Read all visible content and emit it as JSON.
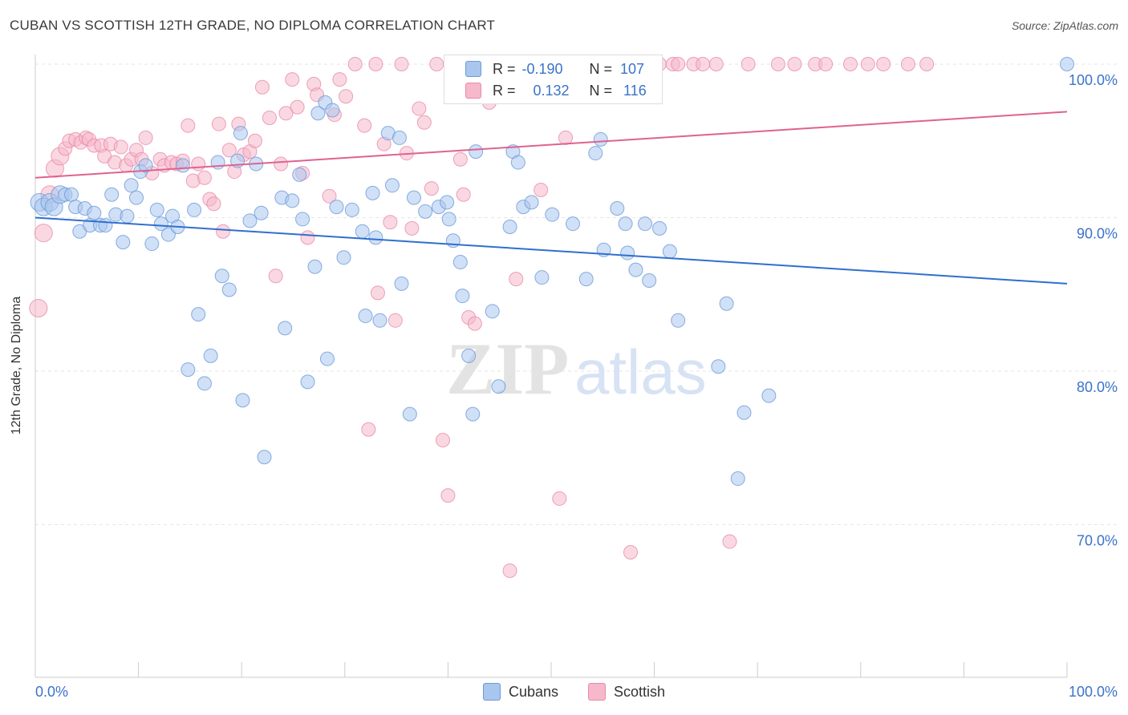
{
  "title": "CUBAN VS SCOTTISH 12TH GRADE, NO DIPLOMA CORRELATION CHART",
  "source": "Source: ZipAtlas.com",
  "watermark": {
    "zip": "ZIP",
    "atlas": "atlas"
  },
  "colors": {
    "cubans_fill": "#a9c6ef",
    "cubans_stroke": "#6b9ad8",
    "cubans_line": "#2f6fd0",
    "scottish_fill": "#f6b8cb",
    "scottish_stroke": "#e98aaa",
    "scottish_line": "#e0628f",
    "axis_text": "#3b73c9",
    "grid": "#e6e6e6"
  },
  "legend": {
    "r_label": "R =",
    "n_label": "N =",
    "cubans": {
      "r": "-0.190",
      "n": "107"
    },
    "scottish": {
      "r": "0.132",
      "n": "116"
    }
  },
  "bottom_legend": {
    "cubans": "Cubans",
    "scottish": "Scottish"
  },
  "chart_data": {
    "type": "scatter",
    "title": "CUBAN VS SCOTTISH 12TH GRADE, NO DIPLOMA CORRELATION CHART",
    "xlabel": "",
    "ylabel": "12th Grade, No Diploma",
    "xlim": [
      0,
      100
    ],
    "ylim": [
      60,
      101.5
    ],
    "x_tick_labels": [
      "0.0%",
      "100.0%"
    ],
    "y_ticks": [
      70,
      80,
      90,
      100
    ],
    "y_tick_labels": [
      "70.0%",
      "80.0%",
      "90.0%",
      "100.0%"
    ],
    "grid": true,
    "legend_position": "top-center",
    "series": [
      {
        "name": "Cubans",
        "trend": {
          "start": [
            0,
            90.0
          ],
          "end": [
            100,
            85.7
          ]
        },
        "points": [
          [
            0.4,
            91.0
          ],
          [
            0.8,
            90.7
          ],
          [
            1.4,
            91.0
          ],
          [
            1.8,
            90.7
          ],
          [
            2.4,
            91.5
          ],
          [
            2.9,
            91.5
          ],
          [
            3.5,
            91.5
          ],
          [
            3.9,
            90.7
          ],
          [
            4.3,
            89.1
          ],
          [
            4.8,
            90.6
          ],
          [
            5.3,
            89.5
          ],
          [
            5.7,
            90.3
          ],
          [
            6.3,
            89.5
          ],
          [
            6.8,
            89.5
          ],
          [
            7.4,
            91.5
          ],
          [
            7.8,
            90.2
          ],
          [
            8.5,
            88.4
          ],
          [
            8.9,
            90.1
          ],
          [
            9.3,
            92.1
          ],
          [
            9.8,
            91.3
          ],
          [
            10.2,
            93.0
          ],
          [
            10.7,
            93.4
          ],
          [
            11.3,
            88.3
          ],
          [
            11.8,
            90.5
          ],
          [
            12.2,
            89.6
          ],
          [
            12.9,
            88.9
          ],
          [
            13.3,
            90.1
          ],
          [
            13.8,
            89.4
          ],
          [
            14.3,
            93.4
          ],
          [
            14.8,
            80.1
          ],
          [
            15.4,
            90.5
          ],
          [
            15.8,
            83.7
          ],
          [
            16.4,
            79.2
          ],
          [
            17.0,
            81.0
          ],
          [
            17.7,
            93.6
          ],
          [
            18.1,
            86.2
          ],
          [
            18.8,
            85.3
          ],
          [
            19.6,
            93.7
          ],
          [
            19.9,
            95.5
          ],
          [
            20.1,
            78.1
          ],
          [
            20.8,
            89.8
          ],
          [
            21.4,
            93.5
          ],
          [
            21.9,
            90.3
          ],
          [
            22.2,
            74.4
          ],
          [
            23.9,
            91.3
          ],
          [
            24.2,
            82.8
          ],
          [
            24.9,
            91.1
          ],
          [
            25.6,
            92.8
          ],
          [
            25.9,
            89.9
          ],
          [
            26.4,
            79.3
          ],
          [
            27.1,
            86.8
          ],
          [
            27.4,
            96.8
          ],
          [
            28.1,
            97.5
          ],
          [
            28.3,
            80.8
          ],
          [
            28.8,
            97.0
          ],
          [
            29.2,
            90.7
          ],
          [
            29.9,
            87.4
          ],
          [
            30.7,
            90.5
          ],
          [
            31.7,
            89.1
          ],
          [
            32.0,
            83.6
          ],
          [
            32.7,
            91.6
          ],
          [
            33.0,
            88.7
          ],
          [
            33.4,
            83.3
          ],
          [
            34.2,
            95.5
          ],
          [
            34.6,
            92.1
          ],
          [
            35.3,
            95.2
          ],
          [
            35.5,
            85.7
          ],
          [
            36.3,
            77.2
          ],
          [
            36.7,
            91.3
          ],
          [
            37.8,
            90.4
          ],
          [
            39.1,
            90.7
          ],
          [
            39.9,
            91.0
          ],
          [
            40.1,
            89.9
          ],
          [
            40.5,
            88.5
          ],
          [
            41.2,
            87.1
          ],
          [
            41.4,
            84.9
          ],
          [
            42.0,
            81.0
          ],
          [
            42.4,
            77.2
          ],
          [
            42.7,
            94.3
          ],
          [
            44.3,
            83.9
          ],
          [
            44.9,
            79.0
          ],
          [
            45.4,
            100.0
          ],
          [
            46.0,
            89.4
          ],
          [
            46.3,
            94.3
          ],
          [
            46.8,
            93.6
          ],
          [
            47.3,
            90.7
          ],
          [
            48.1,
            91.0
          ],
          [
            49.1,
            86.1
          ],
          [
            50.1,
            90.2
          ],
          [
            52.1,
            89.6
          ],
          [
            53.4,
            86.0
          ],
          [
            54.3,
            94.2
          ],
          [
            54.8,
            95.1
          ],
          [
            55.1,
            87.9
          ],
          [
            56.4,
            90.6
          ],
          [
            57.2,
            89.6
          ],
          [
            57.4,
            87.7
          ],
          [
            58.2,
            86.6
          ],
          [
            59.1,
            89.6
          ],
          [
            59.5,
            85.9
          ],
          [
            60.5,
            89.3
          ],
          [
            61.5,
            87.8
          ],
          [
            62.3,
            83.3
          ],
          [
            66.2,
            80.3
          ],
          [
            67.0,
            84.4
          ],
          [
            68.1,
            73.0
          ],
          [
            68.7,
            77.3
          ],
          [
            71.1,
            78.4
          ],
          [
            100.0,
            100.0
          ]
        ]
      },
      {
        "name": "Scottish",
        "trend": {
          "start": [
            0,
            92.6
          ],
          "end": [
            100,
            96.9
          ]
        },
        "points": [
          [
            0.3,
            84.1
          ],
          [
            0.8,
            89.0
          ],
          [
            1.4,
            91.5
          ],
          [
            1.9,
            93.2
          ],
          [
            2.4,
            94.0
          ],
          [
            2.9,
            94.5
          ],
          [
            3.3,
            95.0
          ],
          [
            3.9,
            95.1
          ],
          [
            4.4,
            94.9
          ],
          [
            4.9,
            95.2
          ],
          [
            5.2,
            95.1
          ],
          [
            5.7,
            94.7
          ],
          [
            6.4,
            94.7
          ],
          [
            6.7,
            94.0
          ],
          [
            7.3,
            94.8
          ],
          [
            7.7,
            93.6
          ],
          [
            8.3,
            94.6
          ],
          [
            8.8,
            93.4
          ],
          [
            9.3,
            93.8
          ],
          [
            9.8,
            94.4
          ],
          [
            10.3,
            93.8
          ],
          [
            10.7,
            95.2
          ],
          [
            11.3,
            92.9
          ],
          [
            12.1,
            93.8
          ],
          [
            12.5,
            93.4
          ],
          [
            13.2,
            93.6
          ],
          [
            13.7,
            93.5
          ],
          [
            14.3,
            93.7
          ],
          [
            14.8,
            96.0
          ],
          [
            15.3,
            92.4
          ],
          [
            15.8,
            93.5
          ],
          [
            16.4,
            92.6
          ],
          [
            16.9,
            91.2
          ],
          [
            17.3,
            90.9
          ],
          [
            17.8,
            96.1
          ],
          [
            18.2,
            89.1
          ],
          [
            18.8,
            94.4
          ],
          [
            19.3,
            93.0
          ],
          [
            19.7,
            96.1
          ],
          [
            20.2,
            94.1
          ],
          [
            20.8,
            94.3
          ],
          [
            21.3,
            95.0
          ],
          [
            22.0,
            98.5
          ],
          [
            22.7,
            96.5
          ],
          [
            23.3,
            86.2
          ],
          [
            23.8,
            93.5
          ],
          [
            24.3,
            96.8
          ],
          [
            24.9,
            99.0
          ],
          [
            25.4,
            97.2
          ],
          [
            25.9,
            92.9
          ],
          [
            26.4,
            88.7
          ],
          [
            27.0,
            98.7
          ],
          [
            27.3,
            98.0
          ],
          [
            28.5,
            91.4
          ],
          [
            29.0,
            96.7
          ],
          [
            29.5,
            99.0
          ],
          [
            30.1,
            97.9
          ],
          [
            31.0,
            100.0
          ],
          [
            31.9,
            96.0
          ],
          [
            32.3,
            76.2
          ],
          [
            33.0,
            100.0
          ],
          [
            33.2,
            85.1
          ],
          [
            33.8,
            94.8
          ],
          [
            34.4,
            89.7
          ],
          [
            34.9,
            83.3
          ],
          [
            35.5,
            100.0
          ],
          [
            36.0,
            94.2
          ],
          [
            36.5,
            89.3
          ],
          [
            37.2,
            97.1
          ],
          [
            37.7,
            96.2
          ],
          [
            38.4,
            91.9
          ],
          [
            38.9,
            100.0
          ],
          [
            39.5,
            75.5
          ],
          [
            40.0,
            71.9
          ],
          [
            40.6,
            100.0
          ],
          [
            41.2,
            93.8
          ],
          [
            41.5,
            91.5
          ],
          [
            42.0,
            83.5
          ],
          [
            42.6,
            83.1
          ],
          [
            43.3,
            100.0
          ],
          [
            44.0,
            97.5
          ],
          [
            44.7,
            100.0
          ],
          [
            45.2,
            100.0
          ],
          [
            46.0,
            67.0
          ],
          [
            46.6,
            86.0
          ],
          [
            47.3,
            100.0
          ],
          [
            47.9,
            100.0
          ],
          [
            49.0,
            91.8
          ],
          [
            50.1,
            100.0
          ],
          [
            50.8,
            71.7
          ],
          [
            51.4,
            95.2
          ],
          [
            52.6,
            100.0
          ],
          [
            53.0,
            100.0
          ],
          [
            55.2,
            100.0
          ],
          [
            57.7,
            68.2
          ],
          [
            58.0,
            100.0
          ],
          [
            60.5,
            100.0
          ],
          [
            61.8,
            100.0
          ],
          [
            62.3,
            100.0
          ],
          [
            63.8,
            100.0
          ],
          [
            64.7,
            100.0
          ],
          [
            66.0,
            100.0
          ],
          [
            67.3,
            68.9
          ],
          [
            69.1,
            100.0
          ],
          [
            72.0,
            100.0
          ],
          [
            73.6,
            100.0
          ],
          [
            75.6,
            100.0
          ],
          [
            76.6,
            100.0
          ],
          [
            79.0,
            100.0
          ],
          [
            80.7,
            100.0
          ],
          [
            82.2,
            100.0
          ],
          [
            84.6,
            100.0
          ],
          [
            86.4,
            100.0
          ]
        ]
      }
    ]
  }
}
